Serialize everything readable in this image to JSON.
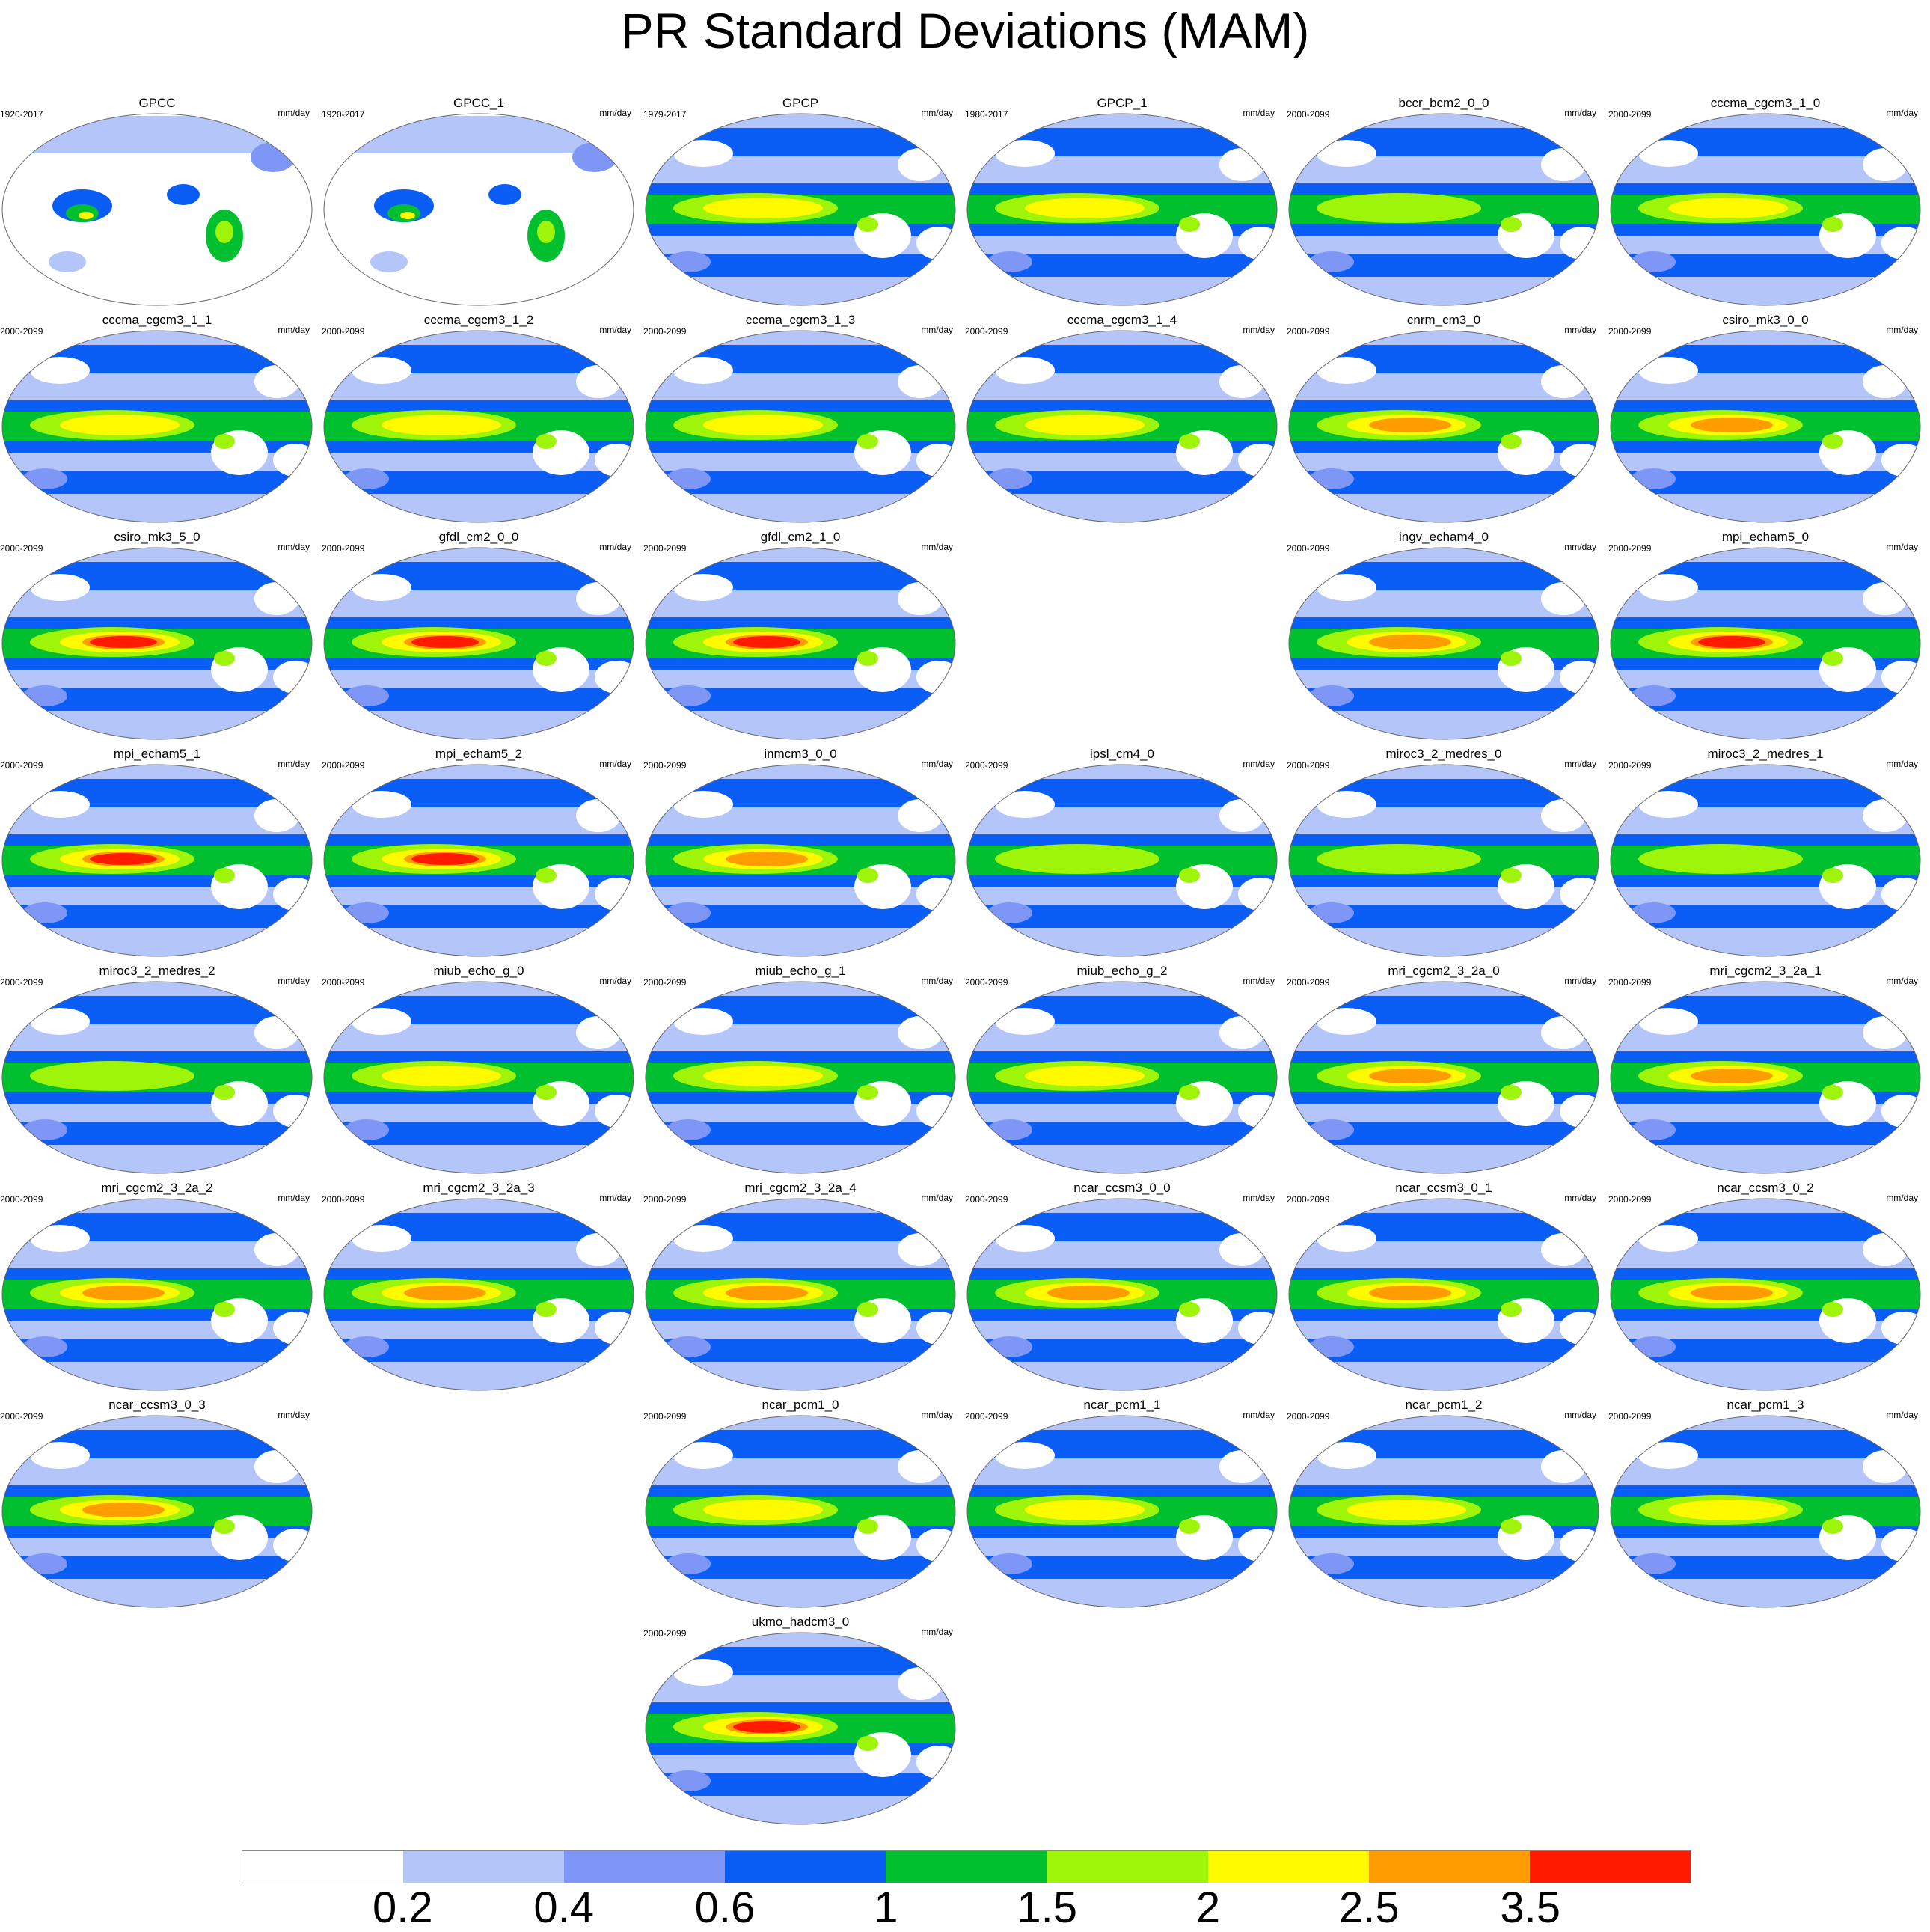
{
  "title": "PR Standard Deviations (MAM)",
  "units": "mm/day",
  "panels": [
    {
      "title": "GPCC",
      "years": "1920-2017",
      "kind": "obs"
    },
    {
      "title": "GPCC_1",
      "years": "1920-2017",
      "kind": "obs"
    },
    {
      "title": "GPCP",
      "years": "1979-2017",
      "kind": "sat"
    },
    {
      "title": "GPCP_1",
      "years": "1980-2017",
      "kind": "sat"
    },
    {
      "title": "bccr_bcm2_0_0",
      "years": "2000-2099",
      "kind": "m3"
    },
    {
      "title": "cccma_cgcm3_1_0",
      "years": "2000-2099",
      "kind": "m4"
    },
    {
      "title": "cccma_cgcm3_1_1",
      "years": "2000-2099",
      "kind": "m4"
    },
    {
      "title": "cccma_cgcm3_1_2",
      "years": "2000-2099",
      "kind": "m4"
    },
    {
      "title": "cccma_cgcm3_1_3",
      "years": "2000-2099",
      "kind": "m4"
    },
    {
      "title": "cccma_cgcm3_1_4",
      "years": "2000-2099",
      "kind": "m4"
    },
    {
      "title": "cnrm_cm3_0",
      "years": "2000-2099",
      "kind": "m5"
    },
    {
      "title": "csiro_mk3_0_0",
      "years": "2000-2099",
      "kind": "m5"
    },
    {
      "title": "csiro_mk3_5_0",
      "years": "2000-2099",
      "kind": "m6"
    },
    {
      "title": "gfdl_cm2_0_0",
      "years": "2000-2099",
      "kind": "m6"
    },
    {
      "title": "gfdl_cm2_1_0",
      "years": "2000-2099",
      "kind": "m6"
    },
    null,
    {
      "title": "ingv_echam4_0",
      "years": "2000-2099",
      "kind": "m5"
    },
    {
      "title": "mpi_echam5_0",
      "years": "2000-2099",
      "kind": "m6"
    },
    {
      "title": "mpi_echam5_1",
      "years": "2000-2099",
      "kind": "m6"
    },
    {
      "title": "mpi_echam5_2",
      "years": "2000-2099",
      "kind": "m6"
    },
    {
      "title": "inmcm3_0_0",
      "years": "2000-2099",
      "kind": "m5"
    },
    {
      "title": "ipsl_cm4_0",
      "years": "2000-2099",
      "kind": "m3"
    },
    {
      "title": "miroc3_2_medres_0",
      "years": "2000-2099",
      "kind": "m3"
    },
    {
      "title": "miroc3_2_medres_1",
      "years": "2000-2099",
      "kind": "m3"
    },
    {
      "title": "miroc3_2_medres_2",
      "years": "2000-2099",
      "kind": "m3"
    },
    {
      "title": "miub_echo_g_0",
      "years": "2000-2099",
      "kind": "m4"
    },
    {
      "title": "miub_echo_g_1",
      "years": "2000-2099",
      "kind": "m4"
    },
    {
      "title": "miub_echo_g_2",
      "years": "2000-2099",
      "kind": "m4"
    },
    {
      "title": "mri_cgcm2_3_2a_0",
      "years": "2000-2099",
      "kind": "m5"
    },
    {
      "title": "mri_cgcm2_3_2a_1",
      "years": "2000-2099",
      "kind": "m5"
    },
    {
      "title": "mri_cgcm2_3_2a_2",
      "years": "2000-2099",
      "kind": "m5"
    },
    {
      "title": "mri_cgcm2_3_2a_3",
      "years": "2000-2099",
      "kind": "m5"
    },
    {
      "title": "mri_cgcm2_3_2a_4",
      "years": "2000-2099",
      "kind": "m5"
    },
    {
      "title": "ncar_ccsm3_0_0",
      "years": "2000-2099",
      "kind": "m5"
    },
    {
      "title": "ncar_ccsm3_0_1",
      "years": "2000-2099",
      "kind": "m5"
    },
    {
      "title": "ncar_ccsm3_0_2",
      "years": "2000-2099",
      "kind": "m5"
    },
    {
      "title": "ncar_ccsm3_0_3",
      "years": "2000-2099",
      "kind": "m5"
    },
    null,
    {
      "title": "ncar_pcm1_0",
      "years": "2000-2099",
      "kind": "m4"
    },
    {
      "title": "ncar_pcm1_1",
      "years": "2000-2099",
      "kind": "m4"
    },
    {
      "title": "ncar_pcm1_2",
      "years": "2000-2099",
      "kind": "m4"
    },
    {
      "title": "ncar_pcm1_3",
      "years": "2000-2099",
      "kind": "m4"
    },
    null,
    null,
    {
      "title": "ukmo_hadcm3_0",
      "years": "2000-2099",
      "kind": "m6"
    }
  ],
  "colorbar": {
    "labels": [
      "0.2",
      "0.4",
      "0.6",
      "1",
      "1.5",
      "2",
      "2.5",
      "3.5"
    ],
    "colors": [
      "#ffffff",
      "#b4c5fa",
      "#7e97f6",
      "#0a5ef5",
      "#00c030",
      "#9ef50a",
      "#fffa00",
      "#ff9d00",
      "#ff1a00"
    ]
  }
}
